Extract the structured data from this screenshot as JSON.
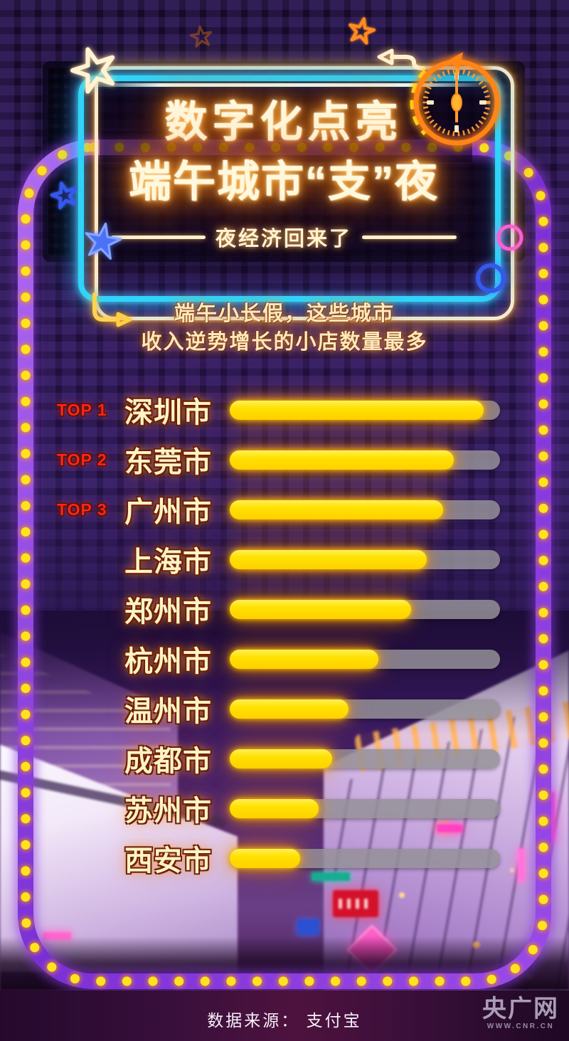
{
  "poster": {
    "title_line1": "数字化点亮",
    "title_line2": "端午城市“支”夜",
    "tagline": "夜经济回来了",
    "description_line1": "端午小长假，这些城市",
    "description_line2": "收入逆势增长的小店数量最多"
  },
  "chart_data": {
    "type": "bar",
    "orientation": "horizontal",
    "title": "端午小长假，这些城市收入逆势增长的小店数量最多",
    "categories": [
      "深圳市",
      "东莞市",
      "广州市",
      "上海市",
      "郑州市",
      "杭州市",
      "温州市",
      "成都市",
      "苏州市",
      "西安市"
    ],
    "rank_labels": [
      "TOP 1",
      "TOP 2",
      "TOP 3",
      "",
      "",
      "",
      "",
      "",
      "",
      ""
    ],
    "series": [
      {
        "name": "收入逆势增长的小店数量（条长相对值，图中未标注数值）",
        "values": [
          94,
          83,
          79,
          73,
          67,
          55,
          44,
          38,
          33,
          26
        ]
      }
    ],
    "value_unit": "percent_of_full_bar",
    "value_labels_shown": false,
    "legend_shown": false,
    "bar_fill_color": "#ffe100",
    "bar_track_color": "#94909a"
  },
  "footer": {
    "source_label": "数据来源： 支付宝",
    "logo_text": "央广网",
    "logo_url_text": "WWW.CNR.CN"
  },
  "colors": {
    "background_dark_purple": "#241345",
    "marquee_band_purple": "#8a3ae0",
    "marquee_bulb_yellow": "#ffe41c",
    "neon_frame_blue": "#2fd4f8",
    "neon_frame_cream": "#ffefcd",
    "neon_clock_orange": "#ff8516",
    "title_glow_orange": "#ff9a1e",
    "rank_red": "#ff2517",
    "city_cream": "#fdf3c3"
  },
  "icons": {
    "top_right": "stopwatch-clock-neon",
    "decorations": [
      "star-outline-cream",
      "star-outline-orange",
      "star-outline-blue",
      "star-filled-blue",
      "circle-outline-pink",
      "circle-outline-blue",
      "arrow-left-hook",
      "arrow-right-hook"
    ]
  }
}
